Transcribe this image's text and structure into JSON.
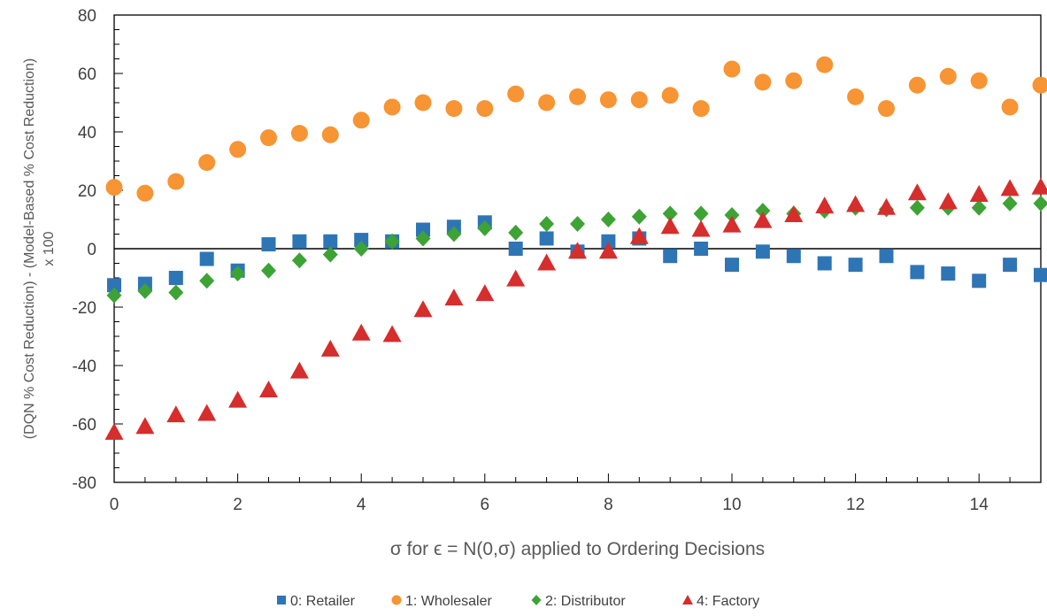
{
  "chart_data": {
    "type": "scatter",
    "title": "",
    "xlabel": "σ for ϵ = N(0,σ) applied to Ordering Decisions",
    "ylabel": [
      "(DQN  % Cost Reduction) - (Model-Based  % Cost Reduction)",
      "x 100"
    ],
    "xlim": [
      0,
      15
    ],
    "ylim": [
      -80,
      80
    ],
    "x_ticks": [
      0,
      2,
      4,
      6,
      8,
      10,
      12,
      14
    ],
    "y_ticks": [
      80,
      60,
      40,
      20,
      0,
      -20,
      -40,
      -60,
      -80
    ],
    "x_minor_step": 0.5,
    "y_minor_step": 5,
    "zero_line": true,
    "grid": false,
    "legend_position": "bottom",
    "x": [
      0,
      0.5,
      1,
      1.5,
      2,
      2.5,
      3,
      3.5,
      4,
      4.5,
      5,
      5.5,
      6,
      6.5,
      7,
      7.5,
      8,
      8.5,
      9,
      9.5,
      10,
      10.5,
      11,
      11.5,
      12,
      12.5,
      13,
      13.5,
      14,
      14.5,
      15
    ],
    "series": [
      {
        "name": "0: Retailer",
        "marker": "square",
        "color": "#2E75B6",
        "values": [
          -12.5,
          -12,
          -10,
          -3.5,
          -7.5,
          1.5,
          2.5,
          2.5,
          3,
          2.5,
          6.5,
          7.5,
          9,
          0,
          3.5,
          -1,
          2.5,
          3.5,
          -2.5,
          0,
          -5.5,
          -1,
          -2.5,
          -5,
          -5.5,
          -2.5,
          -8,
          -8.5,
          -11,
          -5.5,
          -9
        ]
      },
      {
        "name": "1: Wholesaler",
        "marker": "circle",
        "color": "#F79433",
        "values": [
          21,
          19,
          23,
          29.5,
          34,
          38,
          39.5,
          39,
          44,
          48.5,
          50,
          48,
          48,
          53,
          50,
          52,
          51,
          51,
          52.5,
          48,
          61.5,
          57,
          57.5,
          63,
          52,
          48,
          56,
          59,
          57.5,
          48.5,
          56
        ]
      },
      {
        "name": "2: Distributor",
        "marker": "diamond",
        "color": "#3DA335",
        "values": [
          -16,
          -14.5,
          -15,
          -11,
          -8.5,
          -7.5,
          -4,
          -2,
          0,
          2.5,
          3.5,
          5,
          7,
          5.5,
          8.5,
          8.5,
          10,
          11,
          12,
          12,
          11.5,
          13,
          12,
          13,
          14,
          13.5,
          14,
          14,
          14,
          15.5,
          15.5
        ]
      },
      {
        "name": "4: Factory",
        "marker": "triangle",
        "color": "#D62D2D",
        "values": [
          -63,
          -61,
          -57,
          -56.5,
          -52,
          -48.5,
          -42,
          -34.5,
          -29,
          -29.5,
          -21,
          -17,
          -15.5,
          -10.5,
          -5,
          -1,
          -1,
          4,
          7.5,
          6.5,
          8,
          9.5,
          11.5,
          14.5,
          15,
          14,
          19,
          16,
          18.5,
          20.5,
          21
        ]
      }
    ]
  }
}
